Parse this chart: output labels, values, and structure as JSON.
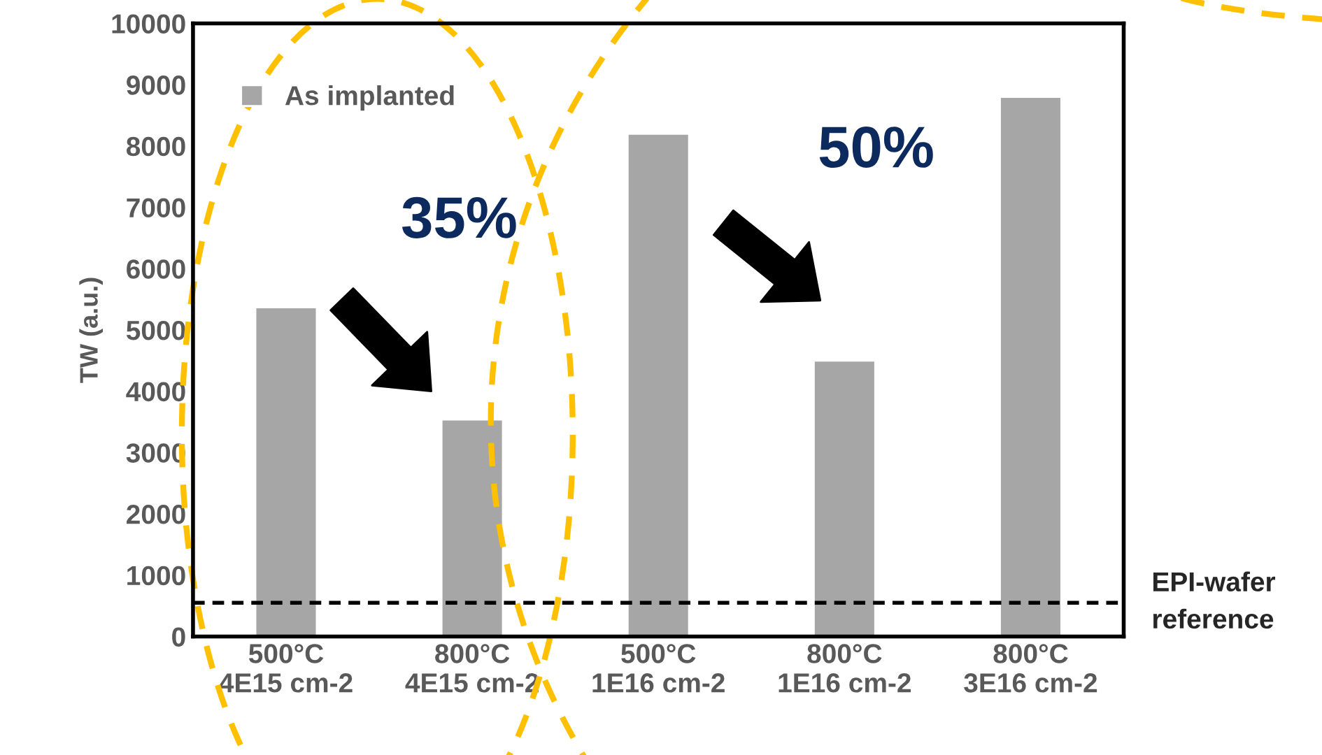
{
  "chart_data": {
    "type": "bar",
    "ylabel": "TW (a.u.)",
    "categories": [
      "500°C\n4E15 cm-2",
      "800°C\n4E15 cm-2",
      "500°C\n1E16 cm-2",
      "800°C\n1E16 cm-2",
      "800°C\n3E16 cm-2"
    ],
    "series": [
      {
        "name": "As implanted",
        "color": "#a6a6a6",
        "values": [
          5370,
          3540,
          8200,
          4500,
          8800
        ]
      }
    ],
    "ylim": [
      0,
      10000
    ],
    "yticks": [
      0,
      1000,
      2000,
      3000,
      4000,
      5000,
      6000,
      7000,
      8000,
      9000,
      10000
    ],
    "grid": false,
    "legend": "top left",
    "ref_lines": [
      {
        "axis": "y",
        "value": 550,
        "label": "EPI-wafer\nreference",
        "color": "#000000",
        "line_style": "dashed"
      }
    ],
    "annotations": [
      "35%",
      "50%"
    ]
  }
}
